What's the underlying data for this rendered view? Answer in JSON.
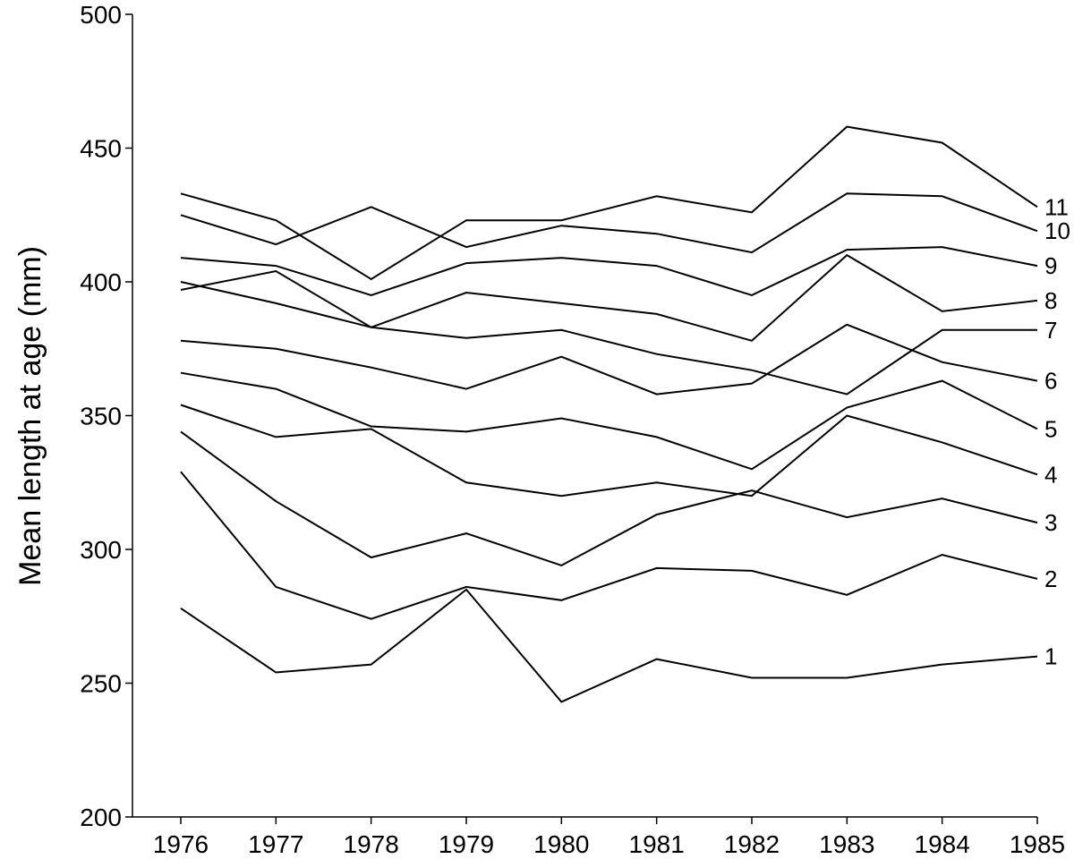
{
  "chart_data": {
    "type": "line",
    "title": "",
    "xlabel": "",
    "ylabel": "Mean length at age (mm)",
    "ylim": [
      200,
      500
    ],
    "yticks": [
      200,
      250,
      300,
      350,
      400,
      450,
      500
    ],
    "x": [
      1976,
      1977,
      1978,
      1979,
      1980,
      1981,
      1982,
      1983,
      1984,
      1985
    ],
    "grid": false,
    "legend": "none",
    "series": [
      {
        "name": "1",
        "values": [
          278,
          254,
          257,
          285,
          243,
          259,
          252,
          252,
          257,
          260
        ]
      },
      {
        "name": "2",
        "values": [
          329,
          286,
          274,
          286,
          281,
          293,
          292,
          283,
          298,
          289
        ]
      },
      {
        "name": "3",
        "values": [
          344,
          318,
          297,
          306,
          294,
          313,
          322,
          312,
          319,
          310
        ]
      },
      {
        "name": "4",
        "values": [
          354,
          342,
          345,
          325,
          320,
          325,
          320,
          350,
          340,
          328
        ]
      },
      {
        "name": "5",
        "values": [
          366,
          360,
          346,
          344,
          349,
          342,
          330,
          353,
          363,
          345
        ]
      },
      {
        "name": "6",
        "values": [
          378,
          375,
          368,
          360,
          372,
          358,
          362,
          384,
          370,
          363
        ]
      },
      {
        "name": "7",
        "values": [
          400,
          392,
          383,
          379,
          382,
          373,
          367,
          358,
          382,
          382
        ]
      },
      {
        "name": "8",
        "values": [
          397,
          404,
          383,
          396,
          392,
          388,
          378,
          410,
          389,
          393
        ]
      },
      {
        "name": "9",
        "values": [
          409,
          406,
          395,
          407,
          409,
          406,
          395,
          412,
          413,
          406
        ]
      },
      {
        "name": "10",
        "values": [
          425,
          414,
          428,
          413,
          421,
          418,
          411,
          433,
          432,
          419
        ]
      },
      {
        "name": "11",
        "values": [
          433,
          423,
          401,
          423,
          423,
          432,
          426,
          458,
          452,
          428
        ]
      }
    ]
  }
}
